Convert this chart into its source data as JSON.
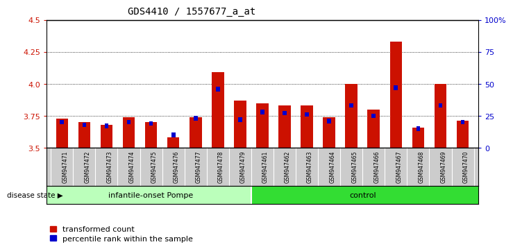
{
  "title": "GDS4410 / 1557677_a_at",
  "samples": [
    "GSM947471",
    "GSM947472",
    "GSM947473",
    "GSM947474",
    "GSM947475",
    "GSM947476",
    "GSM947477",
    "GSM947478",
    "GSM947479",
    "GSM947461",
    "GSM947462",
    "GSM947463",
    "GSM947464",
    "GSM947465",
    "GSM947466",
    "GSM947467",
    "GSM947468",
    "GSM947469",
    "GSM947470"
  ],
  "transformed_count": [
    3.73,
    3.7,
    3.68,
    3.74,
    3.7,
    3.58,
    3.74,
    4.09,
    3.87,
    3.85,
    3.83,
    3.83,
    3.74,
    4.0,
    3.8,
    4.33,
    3.66,
    4.0,
    3.71
  ],
  "percentile_rank": [
    20,
    18,
    17,
    20,
    19,
    10,
    23,
    46,
    22,
    28,
    27,
    26,
    21,
    33,
    25,
    47,
    15,
    33,
    20
  ],
  "groups": [
    {
      "label": "infantile-onset Pompe",
      "start": 0,
      "end": 8,
      "color": "#BBFFBB"
    },
    {
      "label": "control",
      "start": 9,
      "end": 18,
      "color": "#33DD33"
    }
  ],
  "ylim_left": [
    3.5,
    4.5
  ],
  "ylim_right": [
    0,
    100
  ],
  "yticks_left": [
    3.5,
    3.75,
    4.0,
    4.25,
    4.5
  ],
  "yticks_right": [
    0,
    25,
    50,
    75,
    100
  ],
  "ytick_labels_right": [
    "0",
    "25",
    "50",
    "75",
    "100%"
  ],
  "bar_color": "#CC1100",
  "blue_color": "#0000CC",
  "bar_width": 0.55,
  "disease_state_label": "disease state",
  "legend_items": [
    {
      "label": "transformed count",
      "color": "#CC1100"
    },
    {
      "label": "percentile rank within the sample",
      "color": "#0000CC"
    }
  ],
  "grid_lines": [
    3.75,
    4.0,
    4.25
  ],
  "tick_bg_color": "#CCCCCC"
}
